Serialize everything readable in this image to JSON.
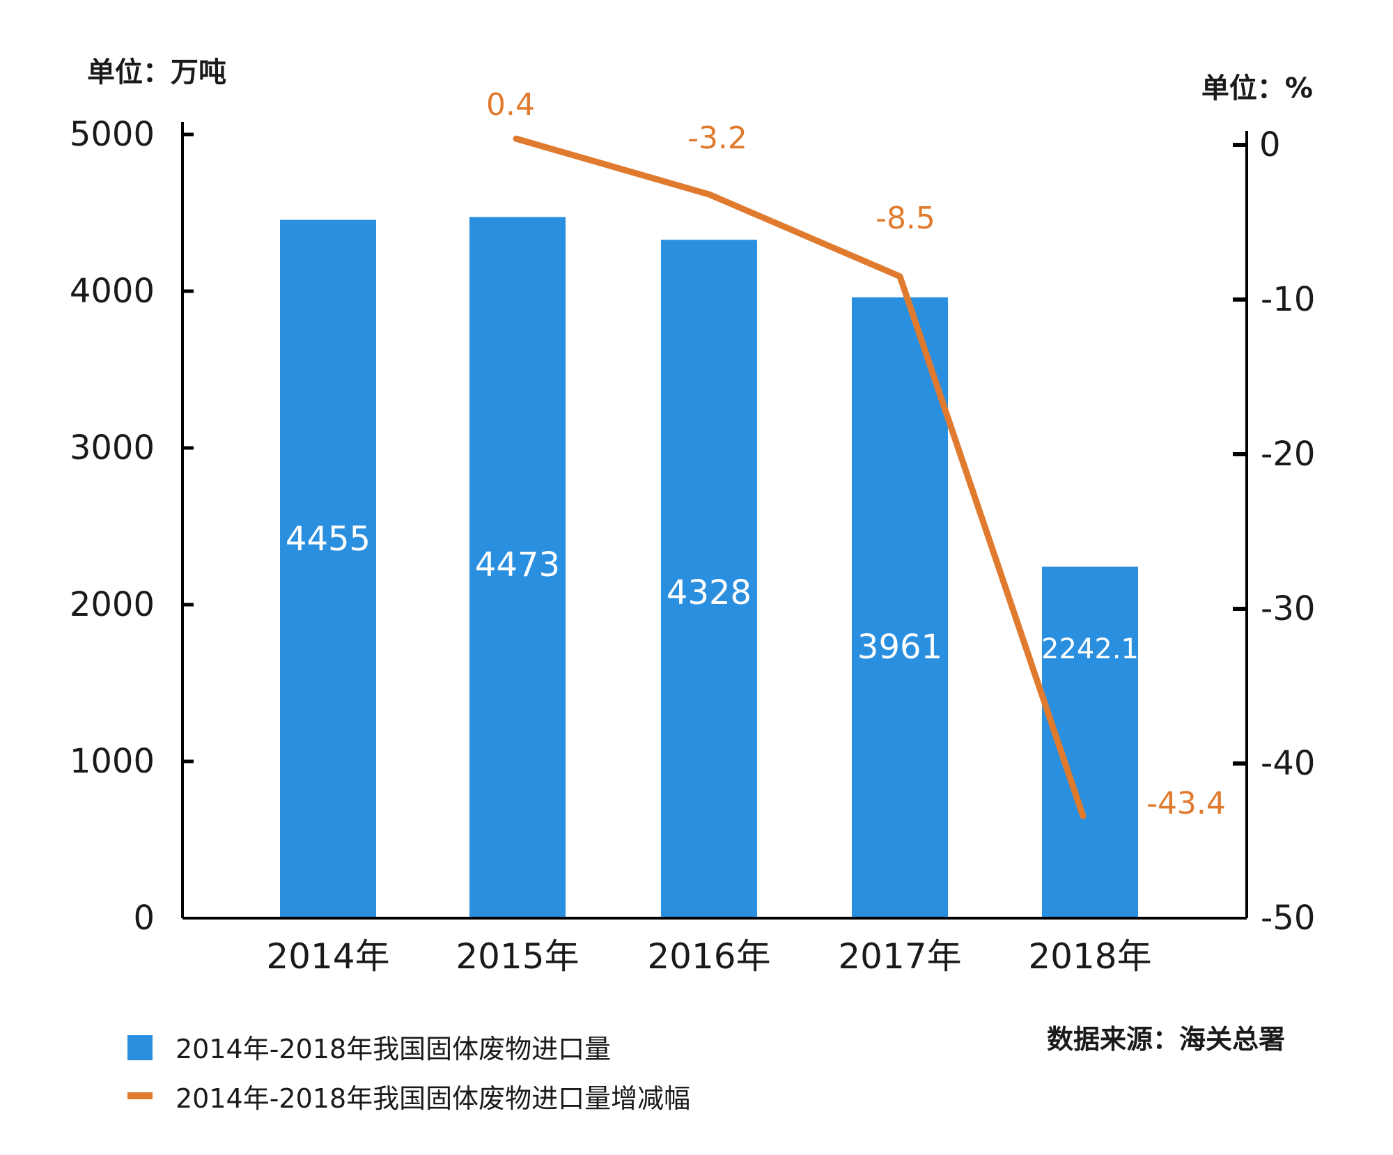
{
  "chart_data": {
    "type": "bar+line",
    "categories": [
      "2014年",
      "2015年",
      "2016年",
      "2017年",
      "2018年"
    ],
    "series": [
      {
        "name": "2014年-2018年我国固体废物进口量",
        "type": "bar",
        "axis": "left",
        "values": [
          4455,
          4473,
          4328,
          3961,
          2242.1
        ],
        "labels": [
          "4455",
          "4473",
          "4328",
          "3961",
          "2242.1"
        ]
      },
      {
        "name": "2014年-2018年我国固体废物进口量增减幅",
        "type": "line",
        "axis": "right",
        "values": [
          null,
          0.4,
          -3.2,
          -8.5,
          -43.4
        ],
        "labels": [
          "",
          "0.4",
          "-3.2",
          "-8.5",
          "-43.4"
        ]
      }
    ],
    "y_left": {
      "unit_label": "单位：万吨",
      "ylim": [
        0,
        5000
      ],
      "ticks": [
        "0",
        "1000",
        "2000",
        "3000",
        "4000",
        "5000"
      ]
    },
    "y_right": {
      "unit_label": "单位：%",
      "ylim": [
        -50,
        0
      ],
      "ticks": [
        "0",
        "-10",
        "-20",
        "-30",
        "-40",
        "-50"
      ]
    },
    "source": "数据来源：海关总署",
    "legend_position": "bottom-left",
    "grid": false
  },
  "colors": {
    "bar": "#2b8fe0",
    "line": "#e07a2e",
    "axis": "#000000",
    "text": "#1a1a1a",
    "bar_label": "#ffffff"
  }
}
